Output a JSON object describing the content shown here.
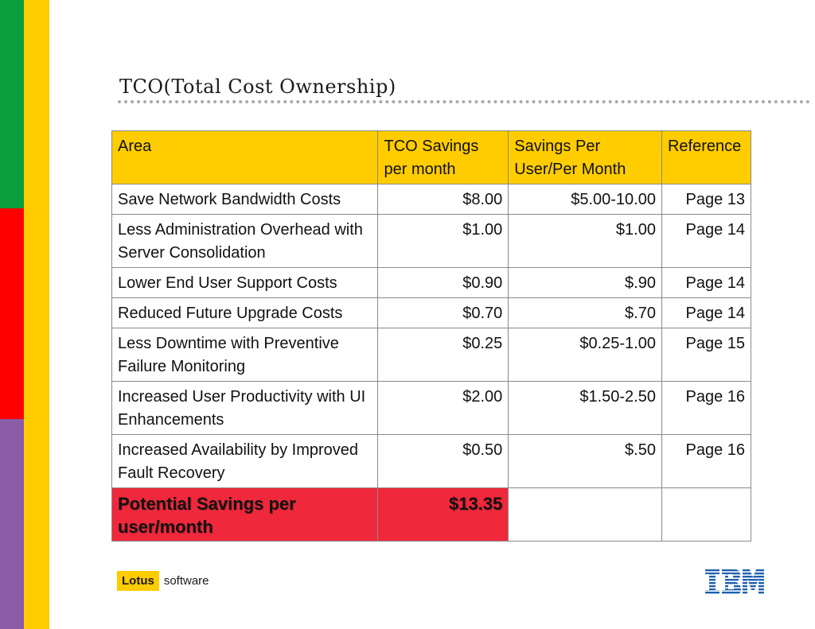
{
  "title": "TCO(Total Cost Ownership)",
  "table": {
    "headers": [
      "Area",
      "TCO Savings per month",
      "Savings Per User/Per Month",
      "Reference"
    ],
    "rows": [
      [
        "Save Network Bandwidth Costs",
        "$8.00",
        "$5.00-10.00",
        "Page 13"
      ],
      [
        "Less Administration Overhead with Server Consolidation",
        "$1.00",
        "$1.00",
        "Page 14"
      ],
      [
        "Lower End User Support Costs",
        "$0.90",
        "$.90",
        "Page 14"
      ],
      [
        "Reduced Future Upgrade Costs",
        "$0.70",
        "$.70",
        "Page 14"
      ],
      [
        "Less Downtime with Preventive Failure Monitoring",
        "$0.25",
        "$0.25-1.00",
        "Page 15"
      ],
      [
        "Increased User Productivity with UI Enhancements",
        "$2.00",
        "$1.50-2.50",
        "Page 16"
      ],
      [
        "Increased Availability by Improved Fault Recovery",
        "$0.50",
        "$.50",
        "Page 16"
      ]
    ],
    "total": {
      "label": "Potential Savings per user/month",
      "value": "$13.35"
    }
  },
  "footer": {
    "brand": "Lotus",
    "brand_suffix": "software",
    "logo": "IBM"
  },
  "colors": {
    "green": "#0a9e3c",
    "red": "#ff0000",
    "purple": "#8b5ca8",
    "yellow": "#ffcc00",
    "total_highlight": "#f0283c",
    "ibm_blue": "#1f5fae"
  }
}
